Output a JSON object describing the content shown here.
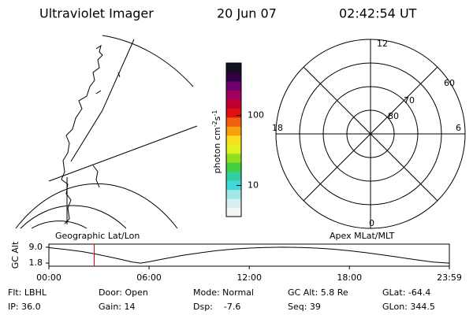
{
  "header": {
    "title": "Ultraviolet Imager",
    "date": "20 Jun 07",
    "time": "02:42:54 UT"
  },
  "left_map": {
    "label": "Geographic Lat/Lon"
  },
  "colorbar": {
    "label_parts": [
      "photon cm",
      "-2",
      "s",
      "-1"
    ],
    "scale": "log",
    "ylim": [
      3.6,
      560
    ],
    "yticks": [
      10,
      100
    ]
  },
  "polar": {
    "label": "Apex MLat/MLT",
    "mlt_labels": [
      "12",
      "18",
      "6",
      "0"
    ],
    "lat_labels": [
      "60",
      "70",
      "80"
    ]
  },
  "timeline": {
    "ylabel": "GC Alt",
    "ylim": [
      0.4,
      10.4
    ],
    "yticks": [
      {
        "value": 9.0,
        "label": "9.0"
      },
      {
        "value": 1.8,
        "label": "1.8"
      }
    ],
    "xlim": [
      0,
      1439
    ],
    "xticks": [
      {
        "value": 0,
        "label": "00:00"
      },
      {
        "value": 360,
        "label": "06:00"
      },
      {
        "value": 720,
        "label": "12:00"
      },
      {
        "value": 1080,
        "label": "18:00"
      },
      {
        "value": 1439,
        "label": "23:59"
      }
    ],
    "x": [
      0,
      60,
      120,
      180,
      240,
      300,
      330,
      360,
      420,
      480,
      540,
      600,
      660,
      720,
      780,
      840,
      900,
      960,
      1020,
      1080,
      1140,
      1200,
      1260,
      1320,
      1380,
      1439
    ],
    "values": [
      8.8,
      8.0,
      7.0,
      5.6,
      4.0,
      2.3,
      1.8,
      2.4,
      3.9,
      5.3,
      6.4,
      7.4,
      8.1,
      8.6,
      8.9,
      9.0,
      8.9,
      8.6,
      8.1,
      7.4,
      6.5,
      5.5,
      4.4,
      3.3,
      2.3,
      1.8
    ],
    "marker": 162.9,
    "marker_color": "#e00000"
  },
  "footer": {
    "rows": [
      [
        "Flt: LBHL",
        "Door: Open",
        "Mode: Normal",
        "GC Alt: 5.8 Re",
        "GLat: -64.4"
      ],
      [
        "IP: 36.0",
        "Gain: 14",
        "Dsp:    -7.6",
        "Seq: 39",
        "GLon: 344.5"
      ]
    ]
  }
}
